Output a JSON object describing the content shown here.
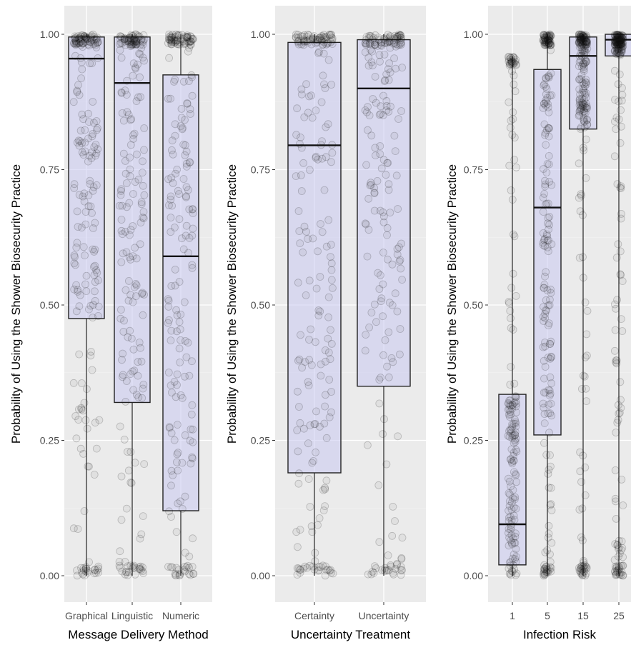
{
  "chart_data": [
    {
      "type": "box",
      "xlabel": "Message Delivery Method",
      "ylabel": "Probability of Using the Shower Biosecurity Practice",
      "ylim": [
        0,
        1
      ],
      "yticks": [
        "0.00",
        "0.25",
        "0.50",
        "0.75",
        "1.00"
      ],
      "categories": [
        "Graphical",
        "Linguistic",
        "Numeric"
      ],
      "boxes": [
        {
          "q1": 0.475,
          "median": 0.955,
          "q3": 0.995,
          "lower": 0.0,
          "upper": 1.0
        },
        {
          "q1": 0.32,
          "median": 0.91,
          "q3": 0.995,
          "lower": 0.0,
          "upper": 1.0
        },
        {
          "q1": 0.12,
          "median": 0.59,
          "q3": 0.925,
          "lower": 0.0,
          "upper": 1.0
        }
      ],
      "grid": true,
      "points_overlay": "jittered"
    },
    {
      "type": "box",
      "xlabel": "Uncertainty Treatment",
      "ylabel": "Probability of Using the Shower Biosecurity Practice",
      "ylim": [
        0,
        1
      ],
      "yticks": [
        "0.00",
        "0.25",
        "0.50",
        "0.75",
        "1.00"
      ],
      "categories": [
        "Certainty",
        "Uncertainty"
      ],
      "boxes": [
        {
          "q1": 0.19,
          "median": 0.795,
          "q3": 0.985,
          "lower": 0.0,
          "upper": 1.0
        },
        {
          "q1": 0.35,
          "median": 0.9,
          "q3": 0.99,
          "lower": 0.0,
          "upper": 1.0
        }
      ],
      "grid": true,
      "points_overlay": "jittered"
    },
    {
      "type": "box",
      "xlabel": "Infection Risk",
      "ylabel": "Probability of Using the Shower Biosecurity Practice",
      "ylim": [
        0,
        1
      ],
      "yticks": [
        "0.00",
        "0.25",
        "0.50",
        "0.75",
        "1.00"
      ],
      "categories": [
        "1",
        "5",
        "15",
        "25"
      ],
      "boxes": [
        {
          "q1": 0.02,
          "median": 0.095,
          "q3": 0.335,
          "lower": 0.0,
          "upper": 0.96
        },
        {
          "q1": 0.26,
          "median": 0.68,
          "q3": 0.935,
          "lower": 0.0,
          "upper": 1.0
        },
        {
          "q1": 0.825,
          "median": 0.96,
          "q3": 0.995,
          "lower": 0.0,
          "upper": 1.0
        },
        {
          "q1": 0.96,
          "median": 0.99,
          "q3": 1.0,
          "lower": 0.0,
          "upper": 1.0
        }
      ],
      "grid": true,
      "points_overlay": "jittered"
    }
  ]
}
